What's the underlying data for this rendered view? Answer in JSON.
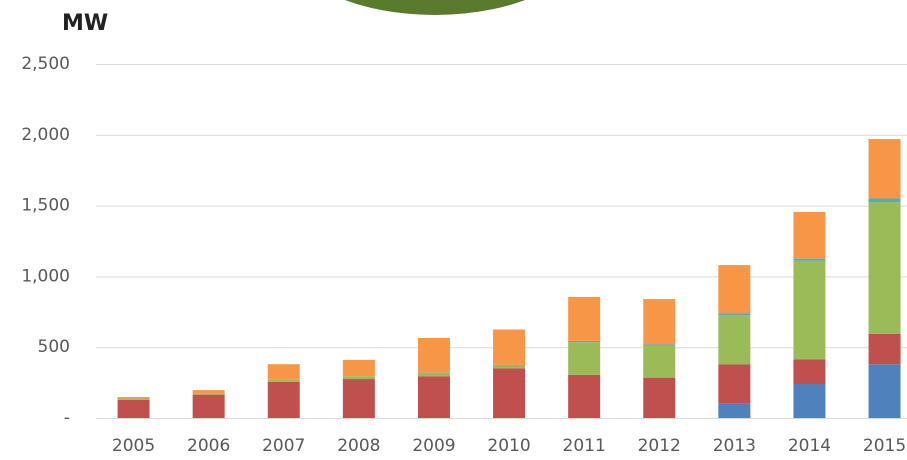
{
  "chart_data": {
    "type": "stacked_bar",
    "title": "MW",
    "categories": [
      "2005",
      "2006",
      "2007",
      "2008",
      "2009",
      "2010",
      "2011",
      "2012",
      "2013",
      "2014",
      "2015"
    ],
    "series": [
      {
        "color": "#4f81bd",
        "values": [
          0,
          0,
          0,
          0,
          0,
          0,
          0,
          0,
          105,
          240,
          380
        ]
      },
      {
        "color": "#c0504d",
        "values": [
          128,
          165,
          255,
          275,
          295,
          350,
          305,
          285,
          275,
          175,
          215
        ]
      },
      {
        "color": "#9bbb59",
        "values": [
          10,
          10,
          15,
          20,
          20,
          20,
          230,
          225,
          345,
          695,
          930
        ]
      },
      {
        "color": "#4bacc6",
        "values": [
          0,
          0,
          0,
          0,
          5,
          5,
          10,
          10,
          15,
          15,
          25
        ]
      },
      {
        "color": "#f79646",
        "values": [
          10,
          22,
          110,
          115,
          245,
          250,
          310,
          320,
          340,
          330,
          420
        ]
      }
    ],
    "ylim": [
      0,
      2500
    ],
    "yticks": [
      {
        "value": 0,
        "label": "-"
      },
      {
        "value": 500,
        "label": "500"
      },
      {
        "value": 1000,
        "label": "1,000"
      },
      {
        "value": 1500,
        "label": "1,500"
      },
      {
        "value": 2000,
        "label": "2,000"
      },
      {
        "value": 2500,
        "label": "2,500"
      }
    ],
    "grid": true
  }
}
